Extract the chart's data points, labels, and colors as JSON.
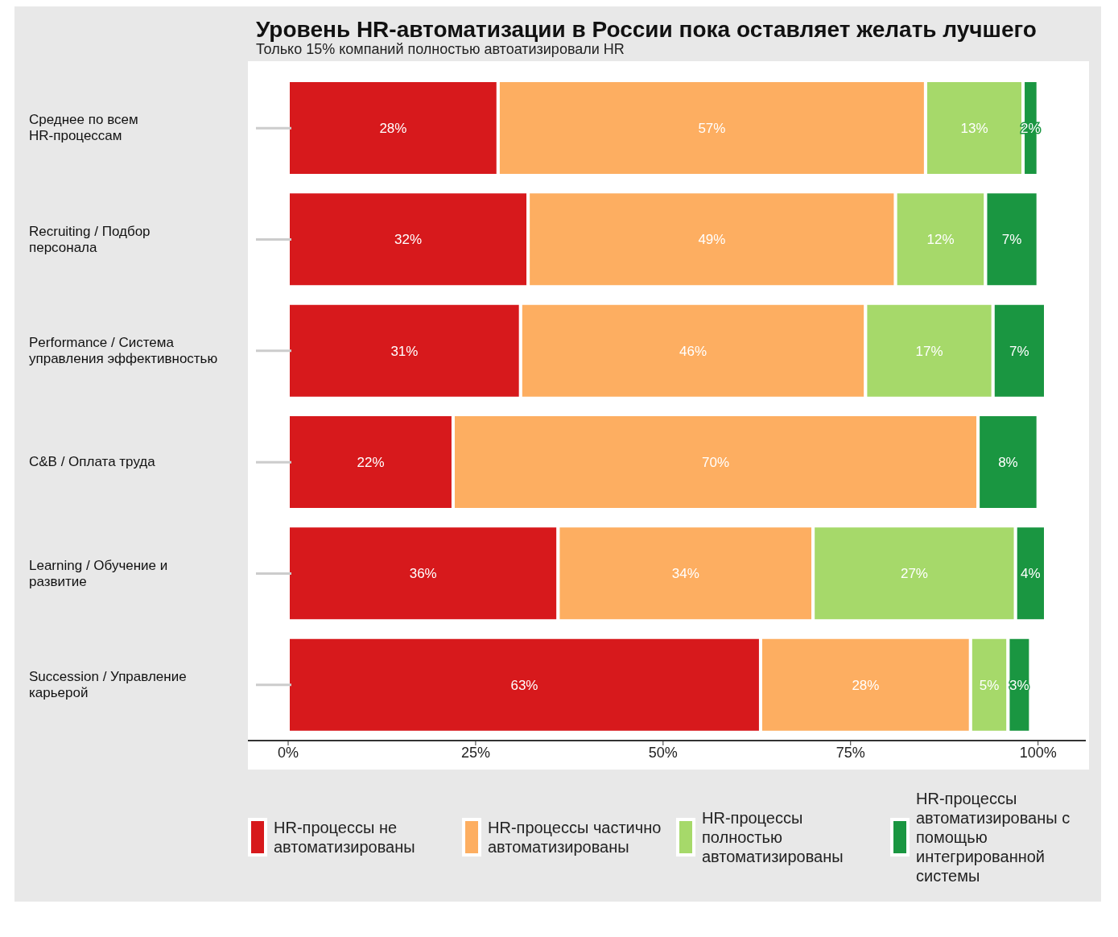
{
  "chart_data": {
    "type": "bar",
    "orientation": "horizontal",
    "stacked": true,
    "title": "Уровень HR-автоматизации в России пока оставляет желать лучшего",
    "subtitle": "Только 15% компаний полностью автоатизировали HR",
    "categories": [
      "Среднее по всем HR-процессам",
      "Recruiting / Подбор персонала",
      "Performance / Система управления эффективностью",
      "C&B / Оплата труда",
      "Learning / Обучение и развитие",
      "Succession / Управление карьерой"
    ],
    "series": [
      {
        "name": "HR-процессы не автоматизированы",
        "color": "#d7191c",
        "values": [
          28,
          32,
          31,
          22,
          36,
          63
        ],
        "value_labels": [
          "28%",
          "32%",
          "31%",
          "22%",
          "36%",
          "63%"
        ]
      },
      {
        "name": "HR-процессы частично автоматизированы",
        "color": "#fdae61",
        "values": [
          57,
          49,
          46,
          70,
          34,
          28
        ],
        "value_labels": [
          "57%",
          "49%",
          "46%",
          "70%",
          "34%",
          "28%"
        ]
      },
      {
        "name": "HR-процессы полностью автоматизированы",
        "color": "#a6d96a",
        "values": [
          13,
          12,
          17,
          null,
          27,
          5
        ],
        "value_labels": [
          "13%",
          "12%",
          "17%",
          null,
          "27%",
          "5%"
        ]
      },
      {
        "name": "HR-процессы автоматизированы с помощью интегрированной системы",
        "color": "#1a9641",
        "values": [
          2,
          7,
          7,
          8,
          4,
          3
        ],
        "value_labels": [
          "2%",
          "7%",
          "7%",
          "8%",
          "4%",
          "3%"
        ]
      }
    ],
    "xlim": [
      0,
      101
    ],
    "xticks": [
      {
        "value": 0,
        "label": "0%"
      },
      {
        "value": 25,
        "label": "25%"
      },
      {
        "value": 50,
        "label": "50%"
      },
      {
        "value": 75,
        "label": "75%"
      },
      {
        "value": 100,
        "label": "100%"
      }
    ],
    "grid": false,
    "legend": "bottom"
  }
}
